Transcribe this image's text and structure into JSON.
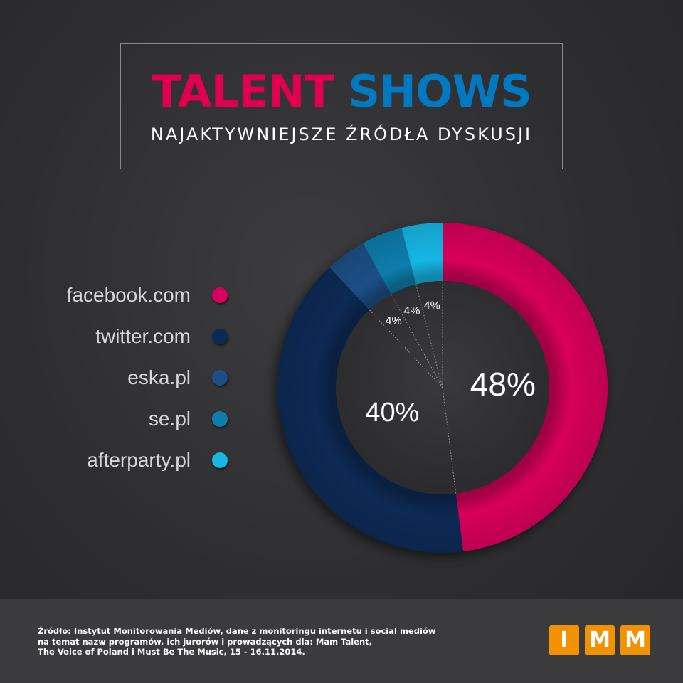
{
  "title": {
    "word1": "TALENT",
    "word2": "SHOWS",
    "subtitle": "NAJAKTYWNIEJSZE ŹRÓDŁA DYSKUSJI",
    "colors": {
      "word1": "#e0004f",
      "word2": "#0079c0"
    }
  },
  "chart_data": {
    "type": "pie",
    "variant": "donut",
    "categories": [
      "facebook.com",
      "twitter.com",
      "eska.pl",
      "se.pl",
      "afterparty.pl"
    ],
    "values": [
      48,
      40,
      4,
      4,
      4
    ],
    "data_labels": [
      "48%",
      "40%",
      "4%",
      "4%",
      "4%"
    ],
    "colors": [
      "#d8005a",
      "#0b2a55",
      "#1c4f86",
      "#0f7dac",
      "#17b6e4"
    ],
    "legend_position": "left"
  },
  "source": {
    "lines": [
      "Źródło: Instytut Monitorowania Mediów, dane z monitoringu internetu i social mediów",
      "na temat nazw programów, ich jurorów i prowadzących dla: Mam Talent,",
      "The Voice of Poland i Must Be The Music, 15 - 16.11.2014."
    ]
  },
  "logo": {
    "letters": [
      "I",
      "M",
      "M"
    ],
    "color": "#f39200"
  }
}
